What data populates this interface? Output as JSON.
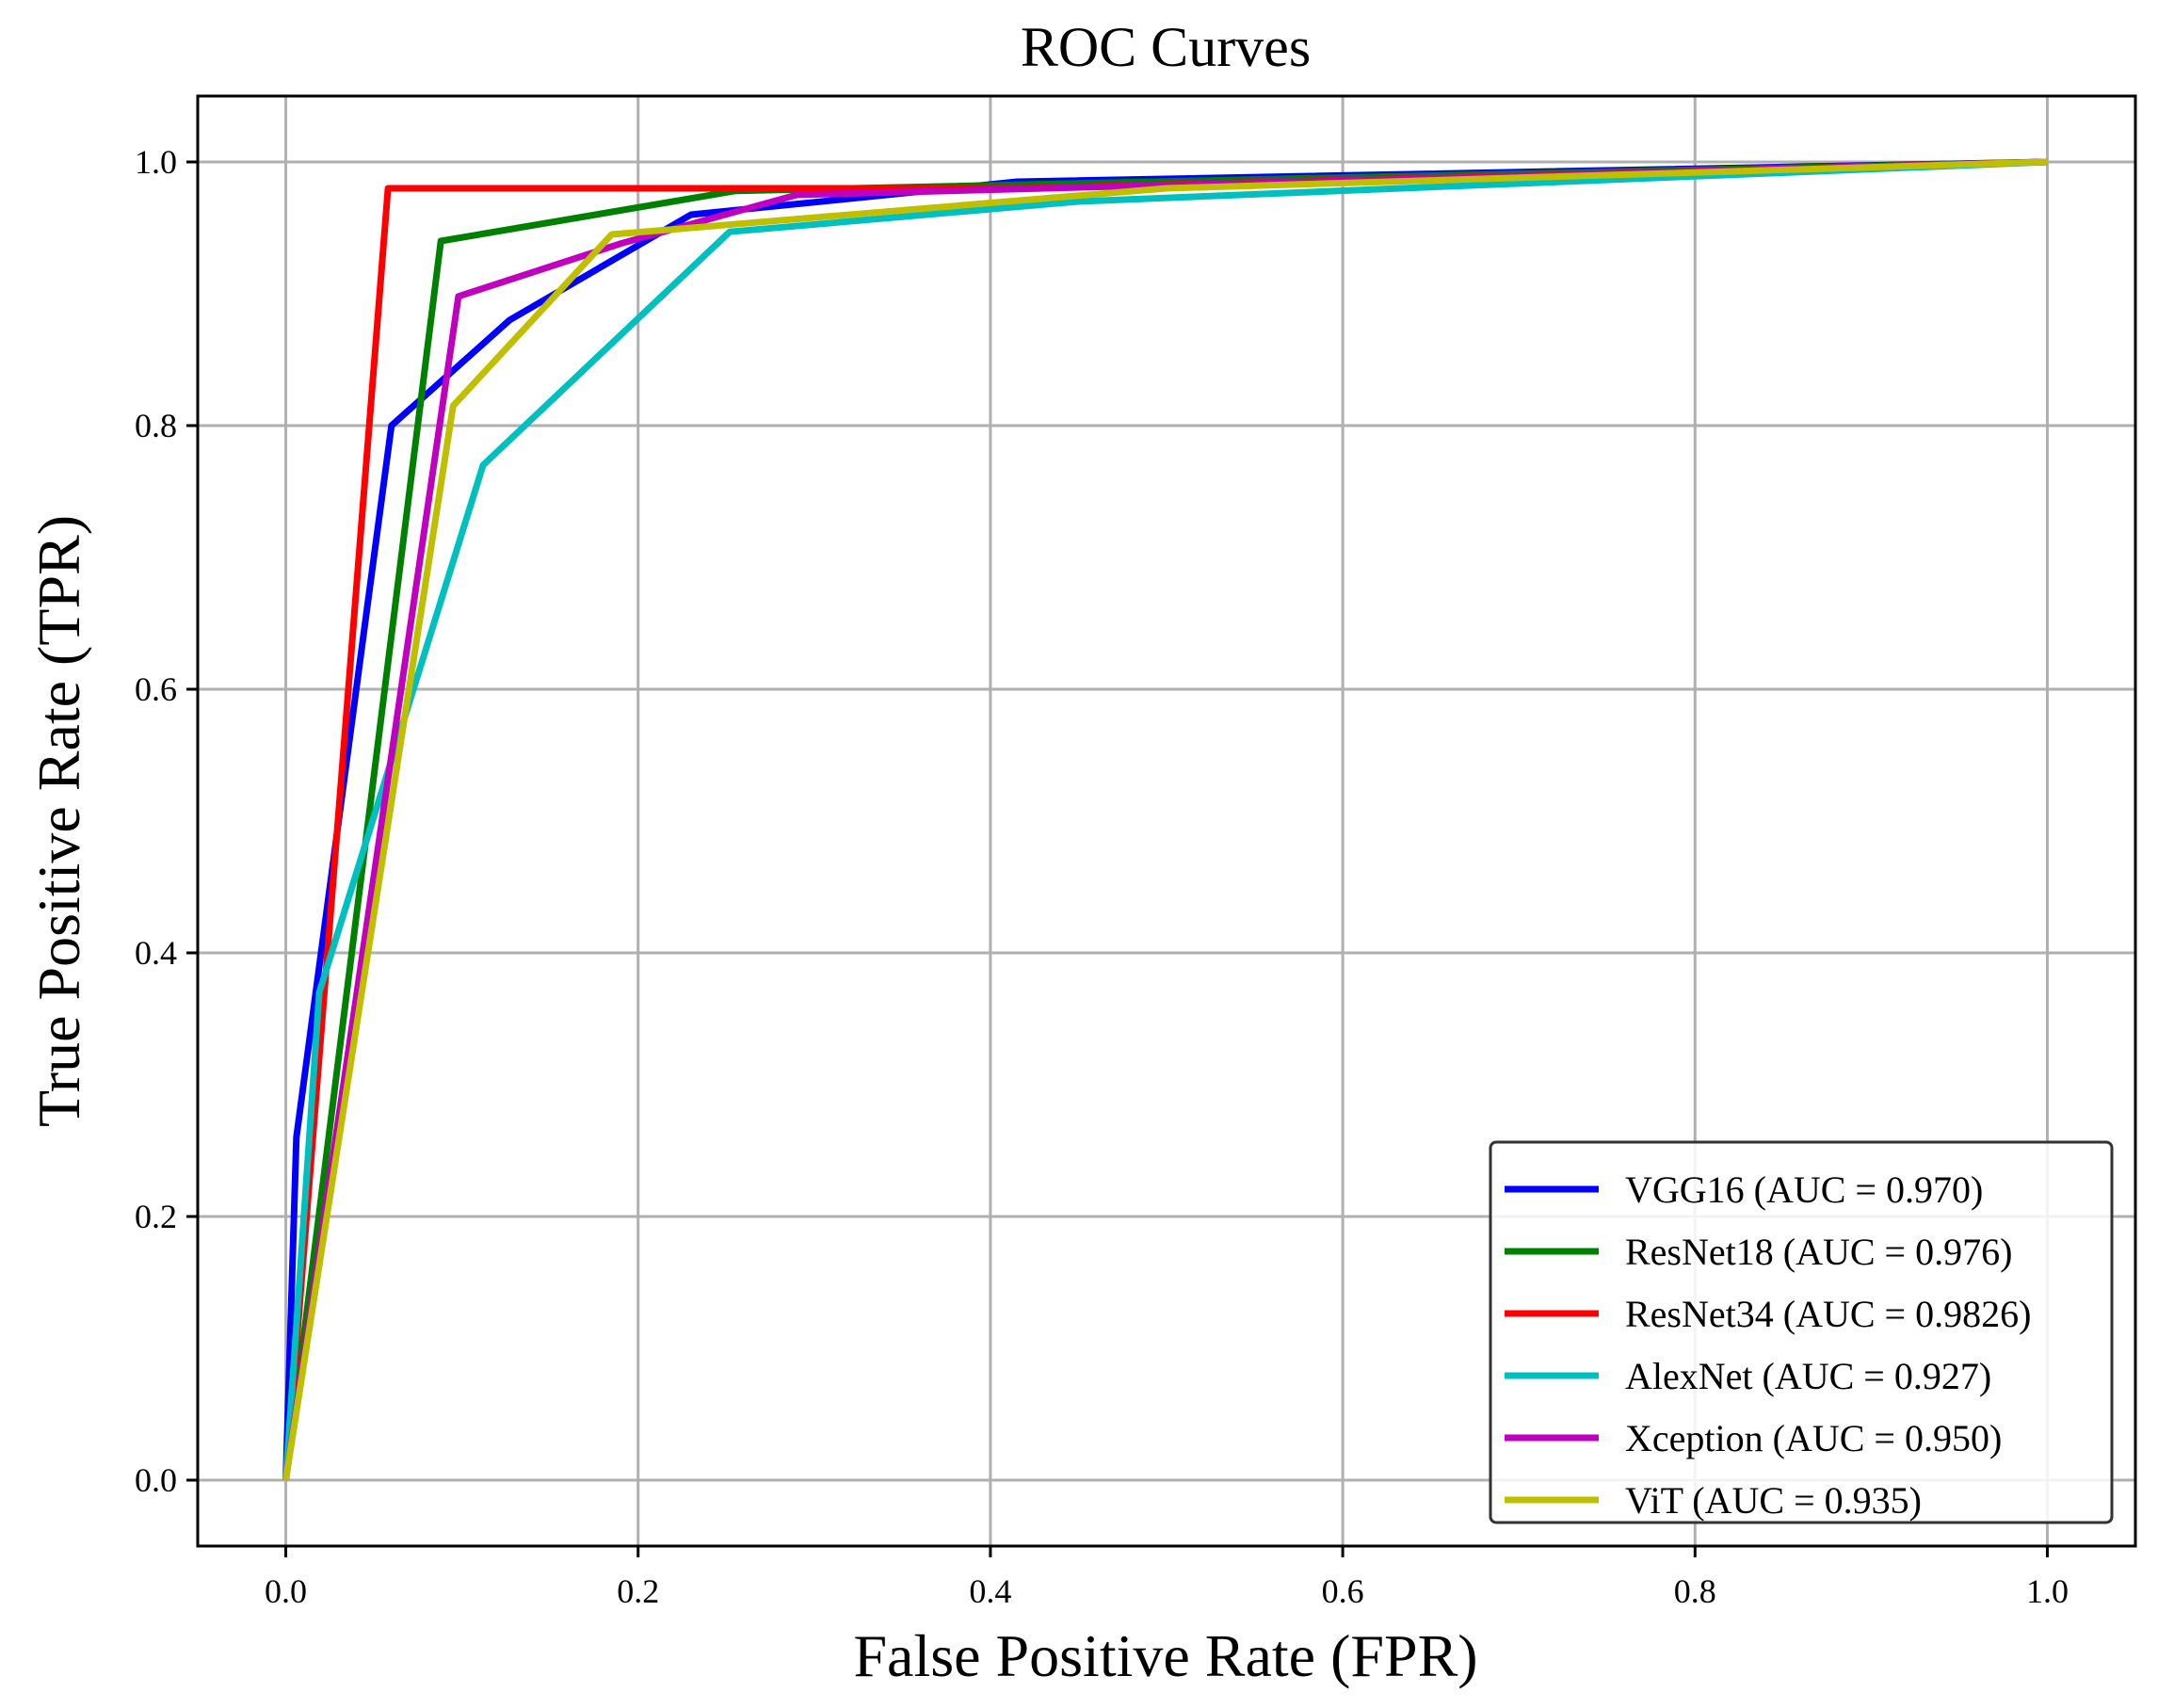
{
  "chart_data": {
    "type": "line",
    "title": "ROC Curves",
    "xlabel": "False Positive Rate (FPR)",
    "ylabel": "True Positive Rate (TPR)",
    "xlim": [
      -0.05,
      1.05
    ],
    "ylim": [
      -0.05,
      1.05
    ],
    "xticks": [
      0.0,
      0.2,
      0.4,
      0.6,
      0.8,
      1.0
    ],
    "yticks": [
      0.0,
      0.2,
      0.4,
      0.6,
      0.8,
      1.0
    ],
    "xtick_labels": [
      "0.0",
      "0.2",
      "0.4",
      "0.6",
      "0.8",
      "1.0"
    ],
    "ytick_labels": [
      "0.0",
      "0.2",
      "0.4",
      "0.6",
      "0.8",
      "1.0"
    ],
    "grid": true,
    "legend_position": "bottom-right",
    "series": [
      {
        "name": "VGG16 (AUC = 0.970)",
        "color": "#0000ff",
        "x": [
          0.0,
          0.006,
          0.06,
          0.127,
          0.23,
          0.415,
          1.0
        ],
        "y": [
          0.0,
          0.26,
          0.8,
          0.88,
          0.96,
          0.985,
          1.0
        ]
      },
      {
        "name": "ResNet18 (AUC = 0.976)",
        "color": "#008000",
        "x": [
          0.0,
          0.088,
          0.255,
          1.0
        ],
        "y": [
          0.0,
          0.94,
          0.978,
          1.0
        ]
      },
      {
        "name": "ResNet34 (AUC = 0.9826)",
        "color": "#ff0000",
        "x": [
          0.0,
          0.058,
          0.42,
          1.0
        ],
        "y": [
          0.0,
          0.98,
          0.98,
          1.0
        ]
      },
      {
        "name": "AlexNet (AUC = 0.927)",
        "color": "#00bfbf",
        "x": [
          0.0,
          0.019,
          0.112,
          0.252,
          0.45,
          1.0
        ],
        "y": [
          0.0,
          0.37,
          0.77,
          0.947,
          0.97,
          1.0
        ]
      },
      {
        "name": "Xception (AUC = 0.950)",
        "color": "#bf00bf",
        "x": [
          0.0,
          0.098,
          0.19,
          0.29,
          1.0
        ],
        "y": [
          0.0,
          0.898,
          0.938,
          0.975,
          1.0
        ]
      },
      {
        "name": "ViT (AUC = 0.935)",
        "color": "#bfbf00",
        "x": [
          0.0,
          0.095,
          0.185,
          0.5,
          1.0
        ],
        "y": [
          0.0,
          0.815,
          0.945,
          0.98,
          1.0
        ]
      }
    ]
  }
}
